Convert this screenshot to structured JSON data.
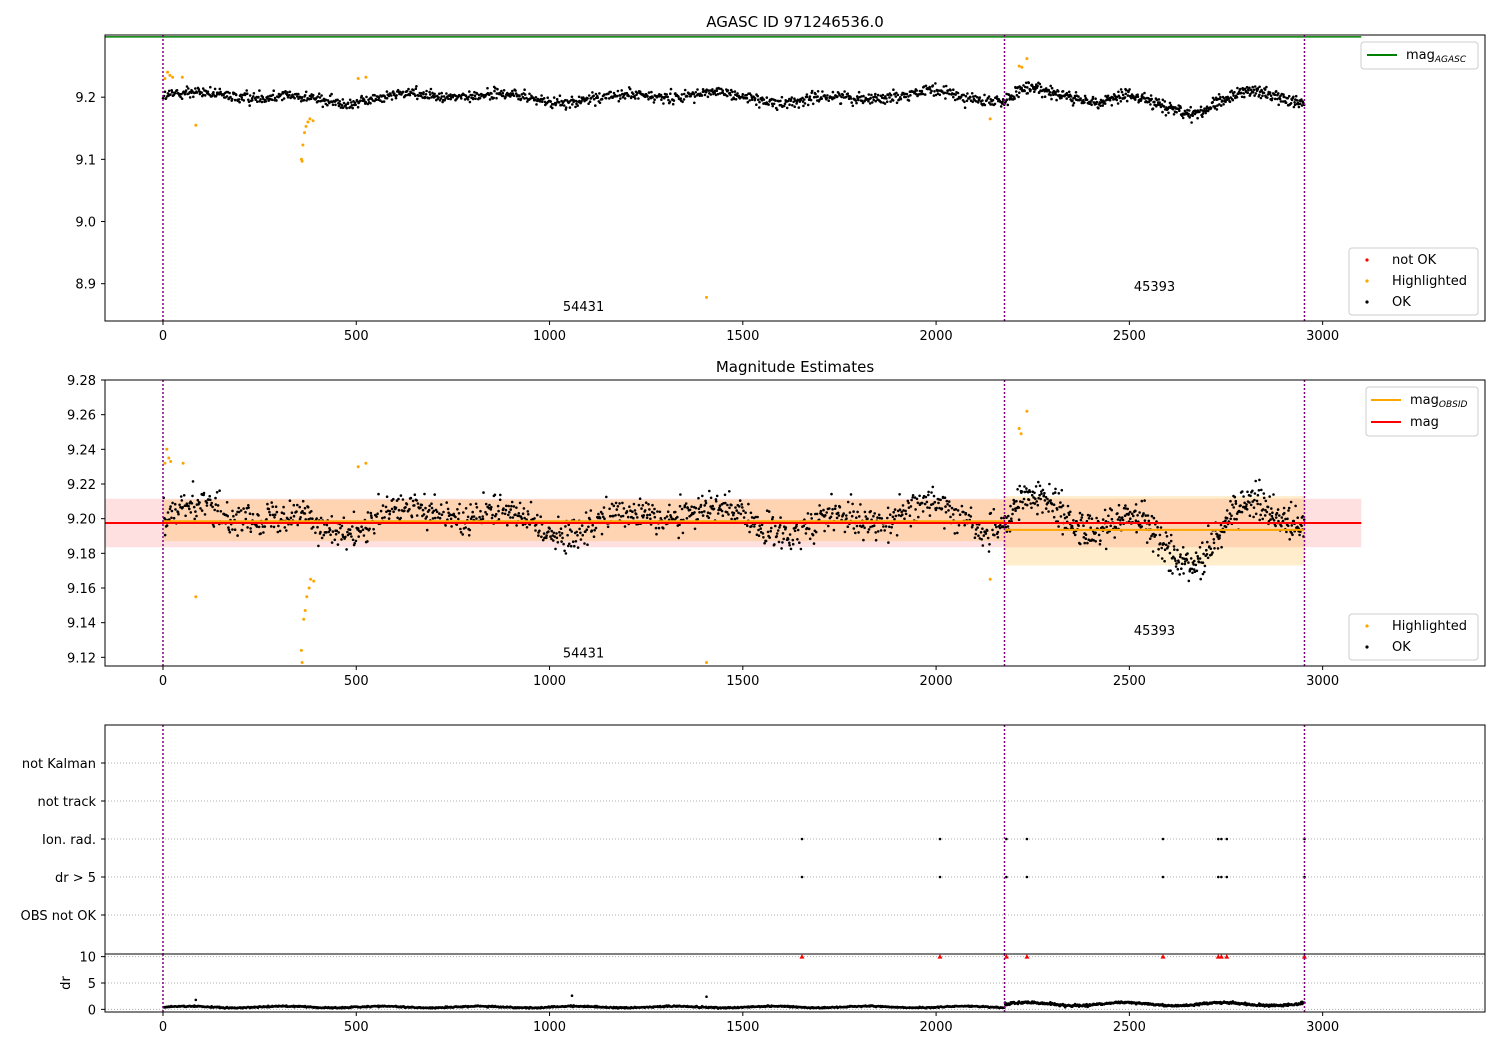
{
  "chart_data": [
    {
      "type": "scatter",
      "title": "AGASC ID 971246536.0",
      "xlabel": "",
      "ylabel": "",
      "xlim": [
        -150,
        3420
      ],
      "ylim": [
        8.84,
        9.3
      ],
      "xticks": [
        0,
        500,
        1000,
        1500,
        2000,
        2500,
        3000
      ],
      "yticks": [
        8.9,
        9.0,
        9.1,
        9.2
      ],
      "ytick_labels": [
        "8.9",
        "9.0",
        "9.1",
        "9.2"
      ],
      "grid": false,
      "obs_boundaries": [
        0,
        2177,
        2953
      ],
      "obsid_labels": [
        {
          "text": "54431",
          "x": 1088,
          "y": 8.856
        },
        {
          "text": "45393",
          "x": 2565,
          "y": 8.888
        }
      ],
      "lines": [
        {
          "name": "mag_AGASC",
          "label_main": "mag",
          "label_sub": "AGASC",
          "y": 9.297,
          "x_range": [
            -150,
            3100
          ],
          "color": "#008000"
        }
      ],
      "series": [
        {
          "name": "not OK",
          "color": "#ff0000",
          "points": []
        },
        {
          "name": "Highlighted",
          "color": "#ffa500",
          "points": [
            [
              5,
              9.23
            ],
            [
              12,
              9.24
            ],
            [
              18,
              9.235
            ],
            [
              25,
              9.232
            ],
            [
              50,
              9.232
            ],
            [
              85,
              9.155
            ],
            [
              358,
              9.1
            ],
            [
              360,
              9.097
            ],
            [
              362,
              9.123
            ],
            [
              366,
              9.143
            ],
            [
              370,
              9.153
            ],
            [
              375,
              9.16
            ],
            [
              380,
              9.165
            ],
            [
              388,
              9.162
            ],
            [
              505,
              9.23
            ],
            [
              525,
              9.232
            ],
            [
              2140,
              9.165
            ],
            [
              2215,
              9.25
            ],
            [
              2222,
              9.248
            ],
            [
              2235,
              9.262
            ],
            [
              1406,
              8.878
            ]
          ]
        },
        {
          "name": "OK",
          "color": "#000000",
          "segments": [
            {
              "x0": 0,
              "x1": 2177,
              "n": 1150,
              "base": 9.2,
              "amp": 0.01,
              "noise": 0.012
            },
            {
              "x0": 2177,
              "x1": 2953,
              "n": 520,
              "base": 9.195,
              "amp": 0.022,
              "noise": 0.013
            }
          ]
        }
      ],
      "legends": [
        {
          "entries": [
            "mag_AGASC"
          ],
          "position": "top-right"
        },
        {
          "entries": [
            "not OK",
            "Highlighted",
            "OK"
          ],
          "position": "lower-right"
        }
      ]
    },
    {
      "type": "scatter",
      "title": "Magnitude Estimates",
      "xlabel": "",
      "ylabel": "",
      "xlim": [
        -150,
        3420
      ],
      "ylim": [
        9.115,
        9.28
      ],
      "xticks": [
        0,
        500,
        1000,
        1500,
        2000,
        2500,
        3000
      ],
      "yticks": [
        9.12,
        9.14,
        9.16,
        9.18,
        9.2,
        9.22,
        9.24,
        9.26,
        9.28
      ],
      "ytick_labels": [
        "9.12",
        "9.14",
        "9.16",
        "9.18",
        "9.20",
        "9.22",
        "9.24",
        "9.26",
        "9.28"
      ],
      "grid": false,
      "obs_boundaries": [
        0,
        2177,
        2953
      ],
      "obsid_labels": [
        {
          "text": "54431",
          "x": 1088,
          "y": 9.12
        },
        {
          "text": "45393",
          "x": 2565,
          "y": 9.133
        }
      ],
      "lines": [
        {
          "name": "mag_OBSID",
          "label_main": "mag",
          "label_sub": "OBSID",
          "color": "#ffa500",
          "pieces": [
            {
              "x_range": [
                0,
                2177
              ],
              "y": 9.1985,
              "band": [
                9.187,
                9.211
              ]
            },
            {
              "x_range": [
                2177,
                2953
              ],
              "y": 9.1935,
              "band": [
                9.173,
                9.213
              ]
            }
          ]
        },
        {
          "name": "mag",
          "label_main": "mag",
          "label_sub": "",
          "color": "#ff0000",
          "x_range": [
            -150,
            3100
          ],
          "y": 9.1975,
          "band": [
            9.1835,
            9.2115
          ]
        }
      ],
      "series": [
        {
          "name": "Highlighted",
          "color": "#ffa500",
          "points": [
            [
              5,
              9.232
            ],
            [
              10,
              9.24
            ],
            [
              15,
              9.235
            ],
            [
              20,
              9.233
            ],
            [
              52,
              9.232
            ],
            [
              85,
              9.155
            ],
            [
              358,
              9.124
            ],
            [
              360,
              9.117
            ],
            [
              364,
              9.142
            ],
            [
              368,
              9.147
            ],
            [
              372,
              9.155
            ],
            [
              378,
              9.16
            ],
            [
              382,
              9.165
            ],
            [
              390,
              9.164
            ],
            [
              505,
              9.23
            ],
            [
              525,
              9.232
            ],
            [
              2140,
              9.165
            ],
            [
              2215,
              9.252
            ],
            [
              2220,
              9.249
            ],
            [
              2235,
              9.262
            ],
            [
              1406,
              9.117
            ]
          ]
        },
        {
          "name": "OK",
          "color": "#000000",
          "segments": [
            {
              "x0": 0,
              "x1": 2177,
              "n": 1150,
              "base": 9.2,
              "amp": 0.01,
              "noise": 0.012
            },
            {
              "x0": 2177,
              "x1": 2953,
              "n": 520,
              "base": 9.195,
              "amp": 0.022,
              "noise": 0.013
            }
          ]
        }
      ],
      "legends": [
        {
          "entries": [
            "mag_OBSID",
            "mag"
          ],
          "position": "top-right"
        },
        {
          "entries": [
            "Highlighted",
            "OK"
          ],
          "position": "lower-right"
        }
      ]
    },
    {
      "type": "scatter",
      "title": "",
      "xlabel": "",
      "ylabel": "",
      "xlim": [
        -150,
        3420
      ],
      "categories": [
        "not Kalman",
        "not track",
        "Ion. rad.",
        "dr > 5",
        "OBS not OK"
      ],
      "grid": true,
      "obs_boundaries": [
        0,
        2177,
        2953
      ],
      "flags": [
        {
          "category": "Ion. rad.",
          "x": [
            1653,
            2010,
            2182,
            2235,
            2587,
            2730,
            2738,
            2752,
            2953
          ]
        },
        {
          "category": "dr > 5",
          "x": [
            1653,
            2010,
            2182,
            2235,
            2587,
            2730,
            2738,
            2752,
            2953
          ]
        }
      ]
    },
    {
      "type": "scatter",
      "title": "",
      "xlabel": "",
      "ylabel": "dr",
      "xlim": [
        -150,
        3420
      ],
      "ylim": [
        -0.5,
        10.5
      ],
      "yticks": [
        0,
        5,
        10
      ],
      "ytick_labels": [
        "0",
        "5",
        "10"
      ],
      "xticks": [
        0,
        500,
        1000,
        1500,
        2000,
        2500,
        3000
      ],
      "grid": true,
      "obs_boundaries": [
        0,
        2177,
        2953
      ],
      "capped_markers": {
        "y": 10,
        "x": [
          1653,
          2010,
          2182,
          2235,
          2587,
          2730,
          2738,
          2752,
          2953
        ],
        "color": "#ff0000"
      },
      "outliers": [
        [
          85,
          1.8
        ],
        [
          1058,
          2.6
        ],
        [
          1406,
          2.4
        ]
      ],
      "segments": [
        {
          "x0": 0,
          "x1": 2177,
          "n": 1150,
          "base": 0.45,
          "amp": 0.15,
          "noise": 0.15
        },
        {
          "x0": 2177,
          "x1": 2953,
          "n": 520,
          "base": 1.0,
          "amp": 0.3,
          "noise": 0.25
        }
      ]
    }
  ]
}
